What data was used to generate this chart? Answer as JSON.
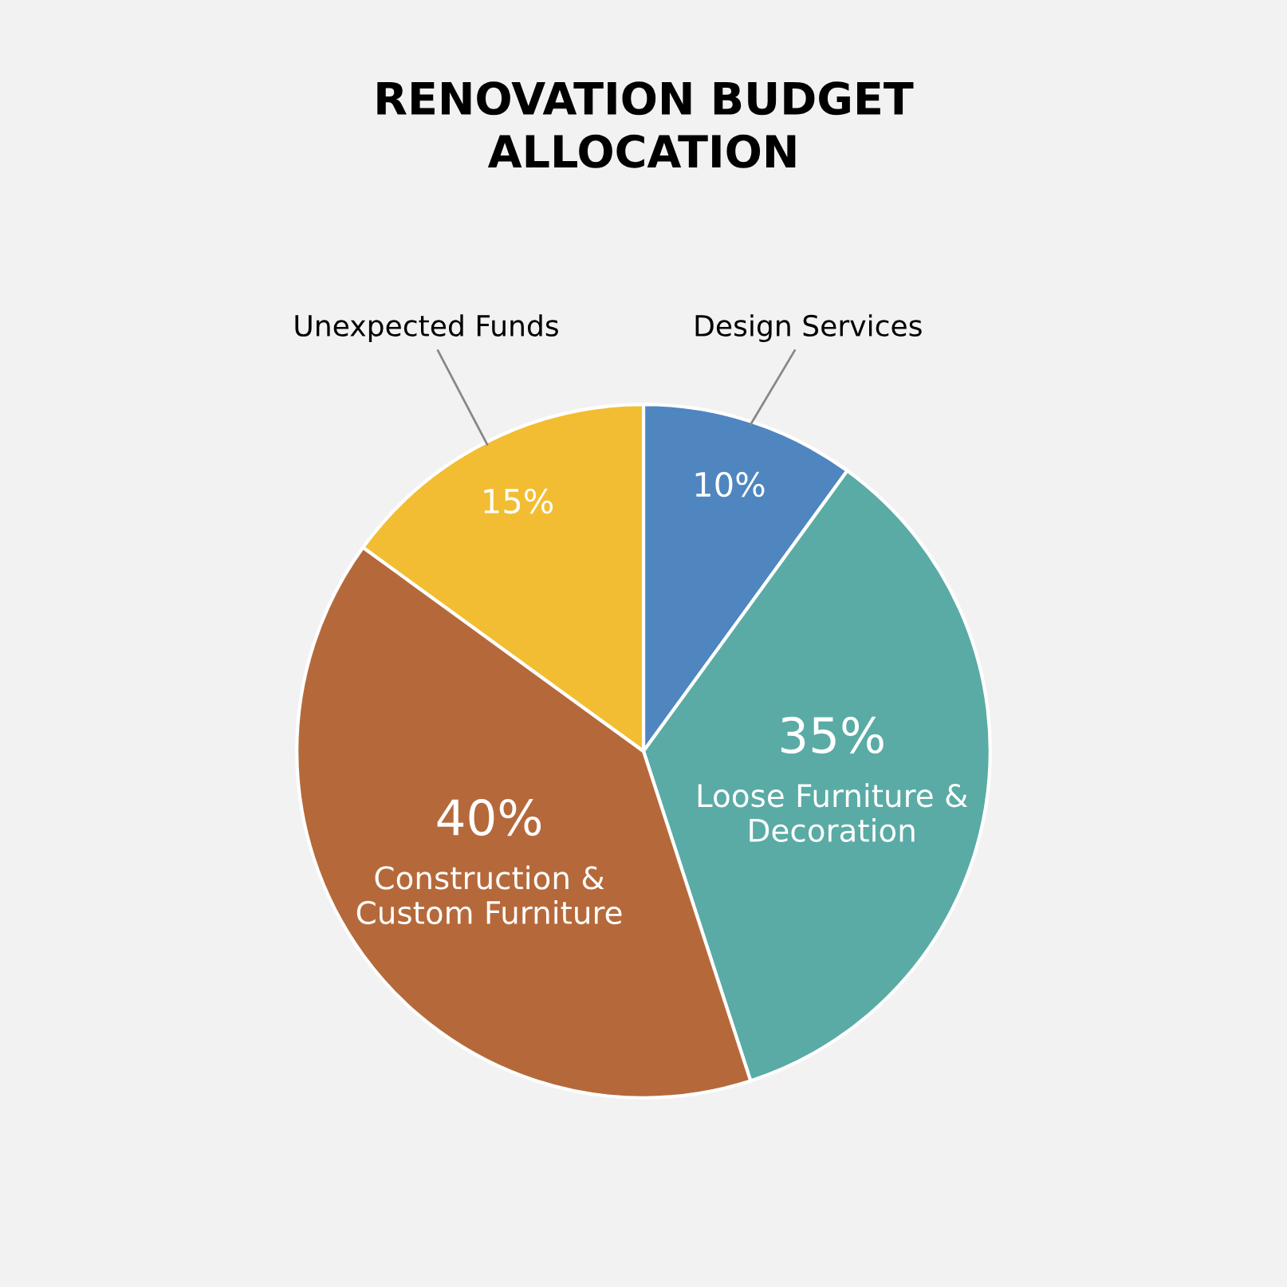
{
  "chart_data": {
    "type": "pie",
    "title": "RENOVATION BUDGET\nALLOCATION",
    "categories": [
      "Design Services",
      "Loose Furniture &\nDecoration",
      "Construction &\nCustom Furniture",
      "Unexpected Funds"
    ],
    "values": [
      10,
      35,
      40,
      15
    ],
    "colors": [
      "#4f86c0",
      "#5aaba5",
      "#b5693a",
      "#f2bd32"
    ],
    "value_labels": [
      "10%",
      "35%",
      "40%",
      "15%"
    ],
    "legend": false
  }
}
